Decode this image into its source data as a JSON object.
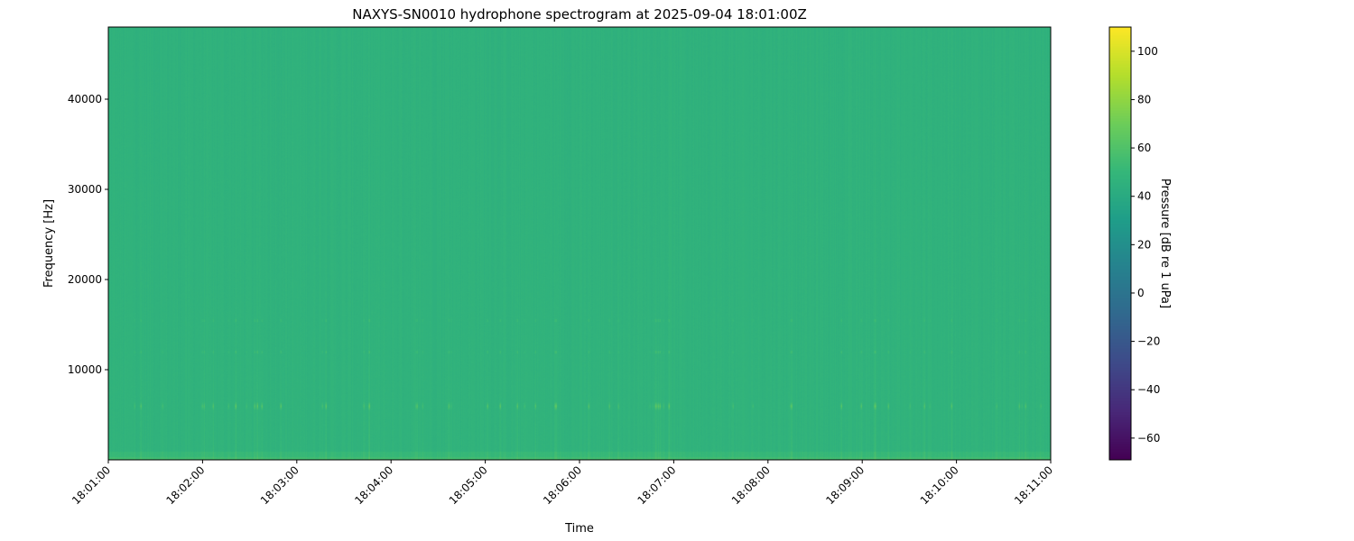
{
  "chart_data": {
    "type": "heatmap",
    "title": "NAXYS-SN0010 hydrophone spectrogram at 2025-09-04 18:01:00Z",
    "xlabel": "Time",
    "ylabel": "Frequency [Hz]",
    "x_range": [
      "18:01:00",
      "18:11:00"
    ],
    "x_ticks": [
      "18:01:00",
      "18:02:00",
      "18:03:00",
      "18:04:00",
      "18:05:00",
      "18:06:00",
      "18:07:00",
      "18:08:00",
      "18:09:00",
      "18:10:00",
      "18:11:00"
    ],
    "ylim": [
      0,
      48000
    ],
    "y_ticks": [
      10000,
      20000,
      30000,
      40000
    ],
    "colorbar": {
      "label": "Pressure [dB re 1 uPa]",
      "colormap": "viridis",
      "range": [
        -69,
        110
      ],
      "ticks": [
        -60,
        -40,
        -20,
        0,
        20,
        40,
        60,
        80,
        100
      ]
    },
    "background_level_db": 47,
    "tonal_band_hz": 6000,
    "grid": false
  }
}
